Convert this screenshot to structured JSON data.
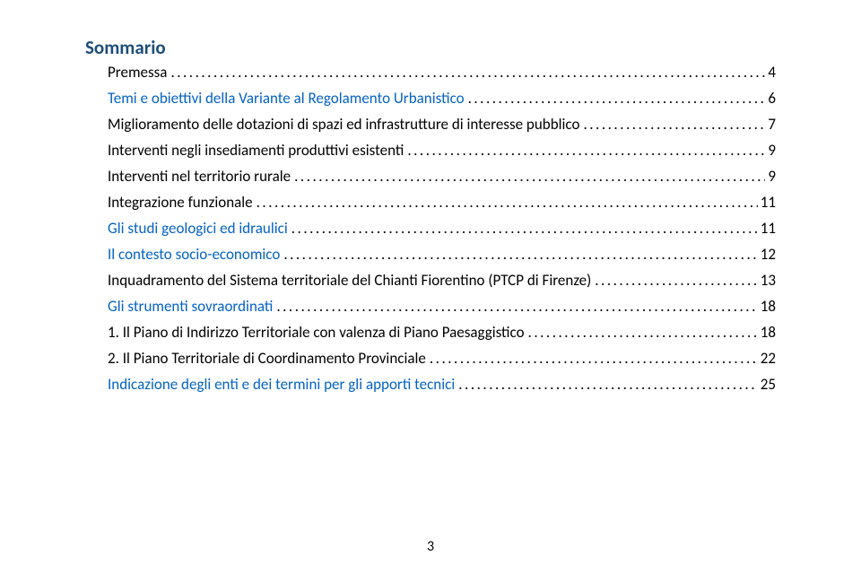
{
  "title": "Sommario",
  "entries": [
    {
      "text": "Premessa",
      "page": "4",
      "level": 1,
      "link": false
    },
    {
      "text": "Temi e obiettivi della Variante al Regolamento Urbanistico",
      "page": "6",
      "level": 0,
      "link": true
    },
    {
      "text": "Miglioramento delle dotazioni di spazi ed infrastrutture di interesse pubblico",
      "page": "7",
      "level": 1,
      "link": false
    },
    {
      "text": "Interventi negli insediamenti produttivi esistenti",
      "page": "9",
      "level": 1,
      "link": false
    },
    {
      "text": "Interventi nel territorio rurale",
      "page": "9",
      "level": 1,
      "link": false
    },
    {
      "text": "Integrazione funzionale",
      "page": "11",
      "level": 1,
      "link": false
    },
    {
      "text": "Gli studi geologici ed idraulici",
      "page": "11",
      "level": 0,
      "link": true
    },
    {
      "text": "Il contesto socio-economico",
      "page": "12",
      "level": 0,
      "link": true
    },
    {
      "text": "Inquadramento del Sistema territoriale del Chianti Fiorentino (PTCP di Firenze)",
      "page": "13",
      "level": 1,
      "link": false
    },
    {
      "text": "Gli strumenti sovraordinati",
      "page": "18",
      "level": 0,
      "link": true
    },
    {
      "text": "1. Il Piano di Indirizzo Territoriale con valenza di Piano Paesaggistico",
      "page": "18",
      "level": 1,
      "link": false
    },
    {
      "text": "2. Il Piano Territoriale di Coordinamento Provinciale",
      "page": "22",
      "level": 1,
      "link": false
    },
    {
      "text": "Indicazione degli enti e dei termini per gli apporti tecnici",
      "page": "25",
      "level": 0,
      "link": true
    }
  ],
  "pageNumber": "3",
  "colors": {
    "title": "#1f4e79",
    "link": "#0563c1",
    "text": "#000000",
    "background": "#ffffff"
  },
  "typography": {
    "title_fontsize": 21,
    "entry_fontsize": 17,
    "page_number_fontsize": 16,
    "font_family": "Calibri"
  }
}
